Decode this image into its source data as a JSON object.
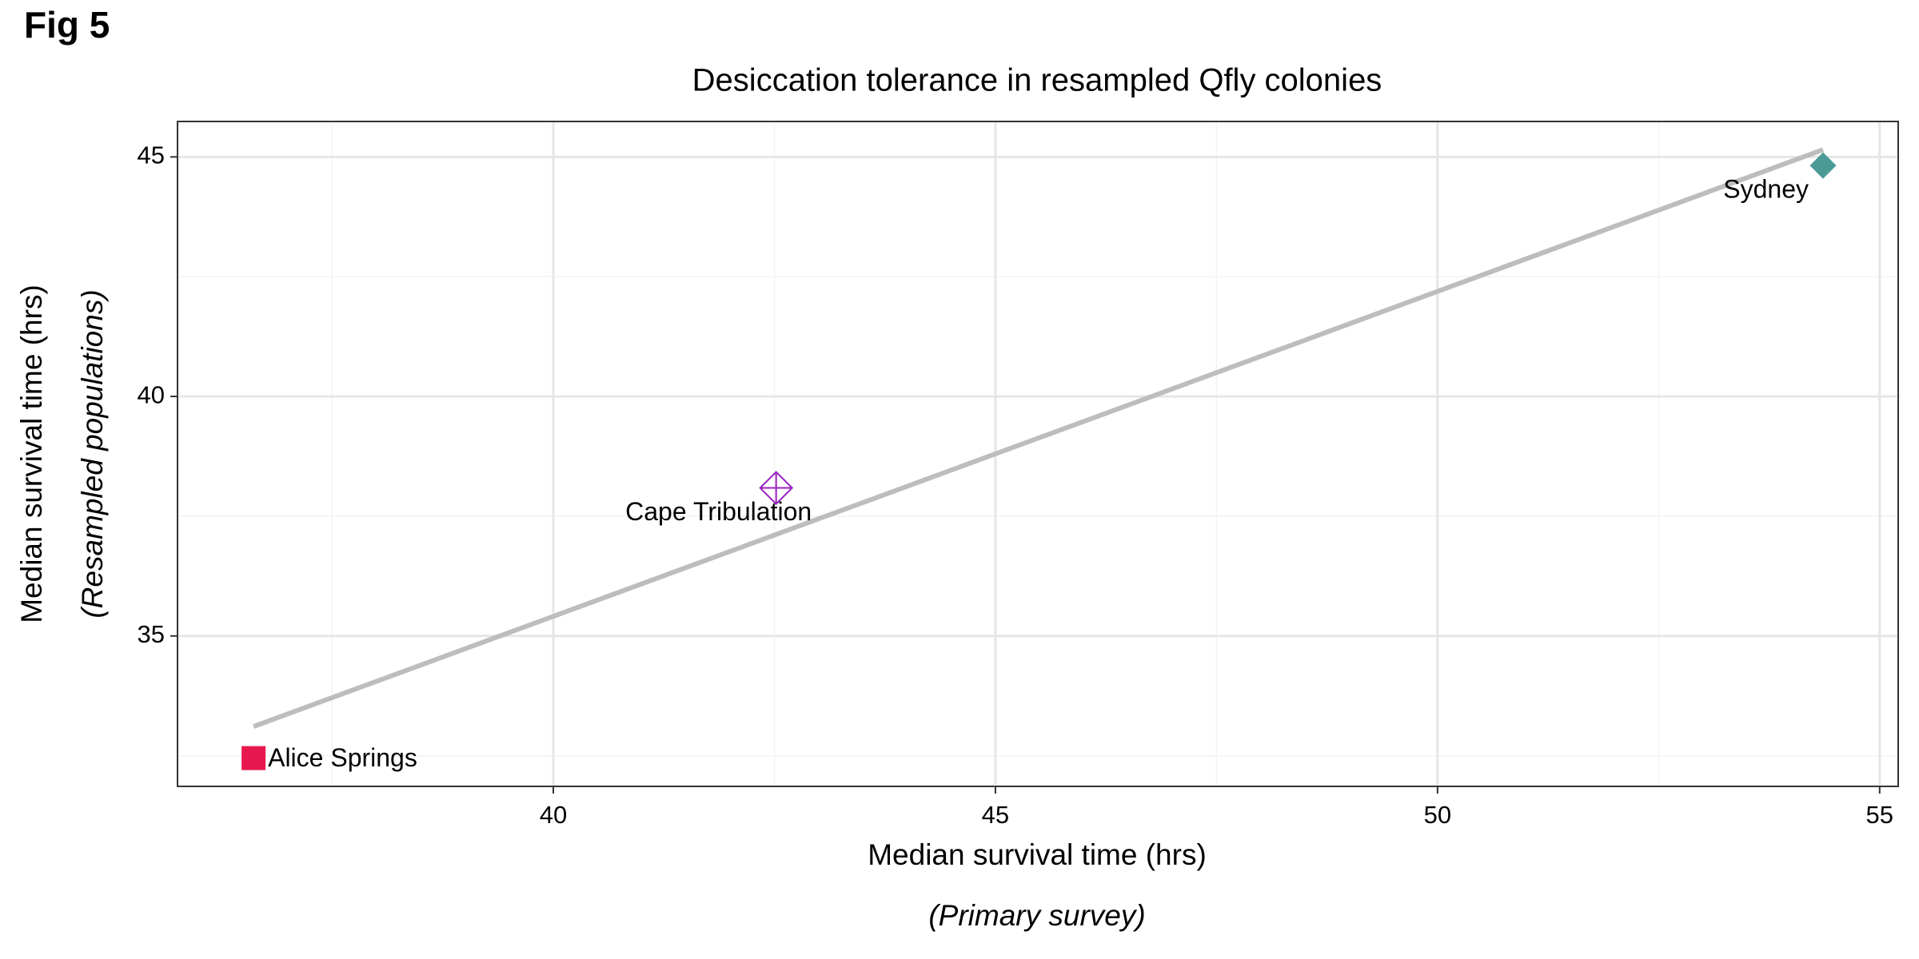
{
  "figure_label": "Fig 5",
  "chart_data": {
    "type": "scatter",
    "title": "Desiccation tolerance in resampled Qfly colonies",
    "x_label": "Median survival time (hrs)",
    "x_sublabel": "(Primary survey)",
    "y_label": "Median survival time (hrs)",
    "y_sublabel": "(Resampled populations)",
    "xlim": [
      35.75,
      55.21
    ],
    "ylim": [
      31.86,
      45.74
    ],
    "xticks": [
      40,
      45,
      50,
      55
    ],
    "yticks": [
      35,
      40,
      45
    ],
    "x_minor_ticks": [
      37.5,
      42.5,
      47.5,
      52.5
    ],
    "y_minor_ticks": [
      32.5,
      37.5,
      42.5
    ],
    "grid": true,
    "series": [
      {
        "name": "Alice Springs",
        "color": "#e8184f",
        "marker": "square",
        "x": [
          36.61
        ],
        "values": [
          32.45
        ]
      },
      {
        "name": "Cape Tribulation",
        "color": "#9b1fc0",
        "marker": "diamond-plus",
        "x": [
          42.52
        ],
        "values": [
          38.09
        ]
      },
      {
        "name": "Sydney",
        "color": "#4a9a96",
        "marker": "diamond",
        "x": [
          54.36
        ],
        "values": [
          44.82
        ]
      }
    ],
    "trend_line": {
      "color": "#bdbdbd",
      "x": [
        36.61,
        54.36
      ],
      "values": [
        33.11,
        45.15
      ]
    }
  }
}
